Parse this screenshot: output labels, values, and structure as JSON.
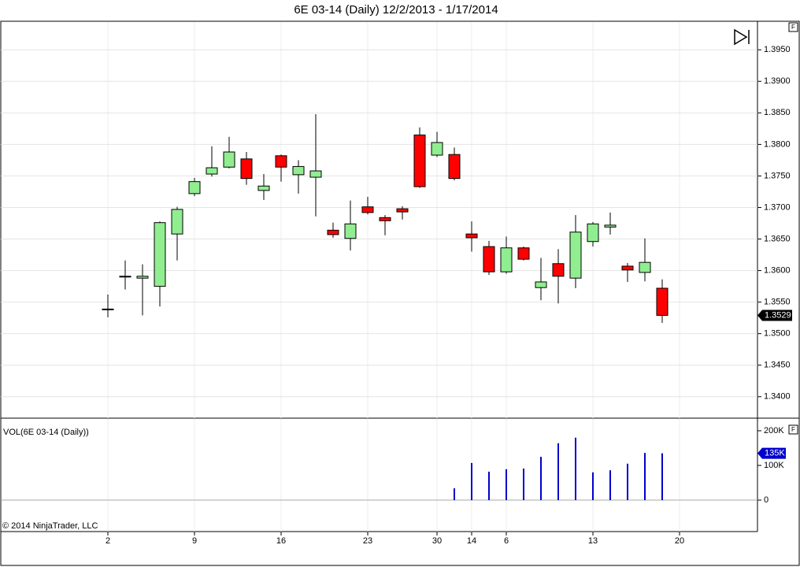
{
  "chart_data": [
    {
      "type": "candlestick",
      "title": "6E 03-14 (Daily)  12/2/2013 - 1/17/2014",
      "categories": [
        "2",
        null,
        null,
        null,
        null,
        "9",
        null,
        null,
        null,
        null,
        "16",
        null,
        null,
        null,
        null,
        "23",
        null,
        null,
        null,
        "30",
        null,
        "14",
        null,
        "6",
        null,
        null,
        null,
        null,
        "13",
        null,
        null,
        null,
        null,
        "20"
      ],
      "open": [
        1.3539,
        1.3591,
        1.3588,
        1.3575,
        1.3658,
        1.3722,
        1.3753,
        1.3764,
        1.3777,
        1.3727,
        1.3782,
        1.3752,
        1.3748,
        1.3664,
        1.3651,
        1.3701,
        1.3684,
        1.3698,
        1.3815,
        1.3783,
        1.3784,
        1.3658,
        1.3638,
        1.3598,
        1.3636,
        1.3573,
        1.3611,
        1.3588,
        1.3646,
        1.3669,
        1.3607,
        1.3597,
        1.3572,
        null
      ],
      "high": [
        1.3562,
        1.3616,
        1.361,
        1.3678,
        1.3701,
        1.3747,
        1.3797,
        1.3812,
        1.3788,
        1.3753,
        1.3784,
        1.3775,
        1.3848,
        1.3676,
        1.3711,
        1.3717,
        1.3688,
        1.3702,
        1.3827,
        1.382,
        1.3795,
        1.3678,
        1.3647,
        1.3654,
        1.3638,
        1.362,
        1.3634,
        1.3688,
        1.3677,
        1.3692,
        1.3612,
        1.3651,
        1.3586,
        null
      ],
      "low": [
        1.3526,
        1.357,
        1.3529,
        1.3543,
        1.3616,
        1.3718,
        1.3749,
        1.3762,
        1.3736,
        1.3712,
        1.3741,
        1.3722,
        1.3686,
        1.3652,
        1.3632,
        1.3689,
        1.3656,
        1.3681,
        1.3731,
        1.378,
        1.3743,
        1.363,
        1.3593,
        1.3595,
        1.3616,
        1.3553,
        1.3548,
        1.3572,
        1.3638,
        1.3657,
        1.3582,
        1.3583,
        1.3517,
        null
      ],
      "close": [
        1.3539,
        1.3591,
        1.3591,
        1.3676,
        1.3697,
        1.3741,
        1.3763,
        1.3788,
        1.3746,
        1.3734,
        1.3764,
        1.3765,
        1.3758,
        1.3657,
        1.3674,
        1.3692,
        1.3679,
        1.3693,
        1.3733,
        1.3803,
        1.3746,
        1.3652,
        1.3598,
        1.3636,
        1.3618,
        1.3582,
        1.3591,
        1.3661,
        1.3674,
        1.3672,
        1.3601,
        1.3613,
        1.3529,
        null
      ],
      "up_color": "#90ee90",
      "down_color": "#ff0000",
      "ylim": [
        1.3366,
        1.3994
      ],
      "yticks": [
        {
          "value": 1.395,
          "label": "1.3950"
        },
        {
          "value": 1.39,
          "label": "1.3900"
        },
        {
          "value": 1.385,
          "label": "1.3850"
        },
        {
          "value": 1.38,
          "label": "1.3800"
        },
        {
          "value": 1.375,
          "label": "1.3750"
        },
        {
          "value": 1.37,
          "label": "1.3700"
        },
        {
          "value": 1.365,
          "label": "1.3650"
        },
        {
          "value": 1.36,
          "label": "1.3600"
        },
        {
          "value": 1.355,
          "label": "1.3550"
        },
        {
          "value": 1.35,
          "label": "1.3500"
        },
        {
          "value": 1.345,
          "label": "1.3450"
        },
        {
          "value": 1.34,
          "label": "1.3400"
        }
      ],
      "grid": true
    },
    {
      "type": "bar",
      "title": "VOL(6E 03-14 (Daily))",
      "values": [
        null,
        null,
        null,
        null,
        null,
        null,
        null,
        null,
        null,
        null,
        null,
        null,
        null,
        null,
        null,
        null,
        null,
        null,
        null,
        null,
        34000,
        107000,
        82000,
        89000,
        91000,
        125000,
        164000,
        180000,
        80000,
        86000,
        105000,
        136000,
        135000,
        null
      ],
      "value_labels": [
        null,
        null,
        null,
        null,
        null,
        null,
        null,
        null,
        null,
        null,
        null,
        null,
        null,
        null,
        null,
        null,
        null,
        null,
        null,
        null,
        null,
        null,
        null,
        null,
        null,
        null,
        null,
        null,
        null,
        null,
        null,
        null,
        "135K",
        null
      ],
      "color": "#0000cc",
      "ylim": [
        -93000,
        234000
      ],
      "yticks": [
        {
          "value": 200000,
          "label": "200K"
        },
        {
          "value": 100000,
          "label": "100K"
        },
        0
      ],
      "grid": false
    }
  ],
  "copyright": "© 2014 NinjaTrader, LLC"
}
